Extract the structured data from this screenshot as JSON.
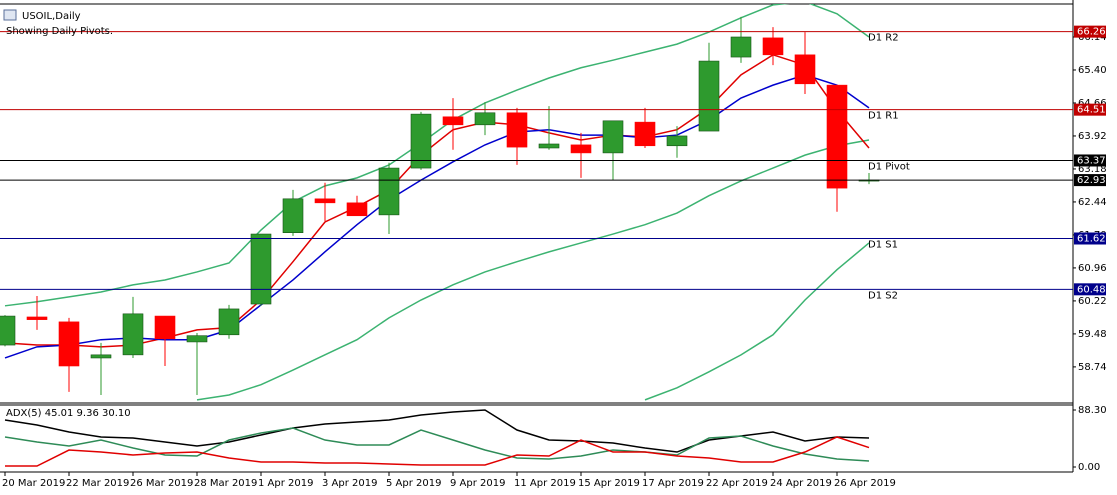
{
  "chart_data": [
    {
      "type": "candlestick",
      "title": "USOIL,Daily",
      "subtitle": "Showing Daily Pivots.",
      "categories": [
        "20 Mar 2019",
        null,
        "22 Mar 2019",
        null,
        "26 Mar 2019",
        null,
        "28 Mar 2019",
        null,
        "1 Apr 2019",
        null,
        "3 Apr 2019",
        null,
        "5 Apr 2019",
        null,
        "9 Apr 2019",
        null,
        "11 Apr 2019",
        null,
        "15 Apr 2019",
        null,
        "17 Apr 2019",
        null,
        "22 Apr 2019",
        null,
        "24 Apr 2019",
        null,
        "26 Apr 2019",
        null
      ],
      "open": [
        59.23,
        59.86,
        59.75,
        58.94,
        59.01,
        59.88,
        59.3,
        59.46,
        60.15,
        61.75,
        62.51,
        62.42,
        62.15,
        63.2,
        64.35,
        64.17,
        64.44,
        63.65,
        63.72,
        63.54,
        64.23,
        63.7,
        64.03,
        65.69,
        66.12,
        65.74,
        65.06,
        62.91
      ],
      "high": [
        59.9,
        60.33,
        59.84,
        59.28,
        60.31,
        59.88,
        59.5,
        60.13,
        61.72,
        62.71,
        62.87,
        62.58,
        63.32,
        64.46,
        64.77,
        64.68,
        64.55,
        64.59,
        63.99,
        64.26,
        64.55,
        64.14,
        66.01,
        66.59,
        66.36,
        66.25,
        65.06,
        63.09
      ],
      "low": [
        59.2,
        59.57,
        58.18,
        58.11,
        58.94,
        58.76,
        58.11,
        59.37,
        60.11,
        61.68,
        62.01,
        62.13,
        61.72,
        63.16,
        63.61,
        63.94,
        63.27,
        63.61,
        62.98,
        62.93,
        63.65,
        63.43,
        64.03,
        65.56,
        65.51,
        64.86,
        62.22,
        62.84
      ],
      "close": [
        59.88,
        59.8,
        58.76,
        59.01,
        59.93,
        59.37,
        59.44,
        60.04,
        61.72,
        62.51,
        62.42,
        62.13,
        63.2,
        64.41,
        64.17,
        64.44,
        63.67,
        63.74,
        63.54,
        64.26,
        63.7,
        63.92,
        65.6,
        66.14,
        65.74,
        65.09,
        62.75,
        62.93
      ],
      "up_color": "#2e9a2e",
      "down_color": "#ff0000",
      "series": [
        {
          "color": "#3cb371",
          "values": [
            60.11,
            60.2,
            60.31,
            60.42,
            60.58,
            60.69,
            60.87,
            61.07,
            61.81,
            62.44,
            62.8,
            62.98,
            63.27,
            63.76,
            64.28,
            64.66,
            64.95,
            65.22,
            65.45,
            65.62,
            65.8,
            65.98,
            66.25,
            66.57,
            66.86,
            66.93,
            66.66,
            66.14
          ]
        },
        {
          "color": "#3cb371",
          "values": [
            null,
            null,
            null,
            null,
            null,
            null,
            58.0,
            58.11,
            58.34,
            58.67,
            59.01,
            59.35,
            59.84,
            60.24,
            60.58,
            60.87,
            61.1,
            61.32,
            61.52,
            61.72,
            61.93,
            62.19,
            62.58,
            62.91,
            63.2,
            63.49,
            63.7,
            63.83
          ]
        },
        {
          "color": "#3cb371",
          "values": [
            null,
            null,
            null,
            null,
            null,
            null,
            null,
            null,
            null,
            null,
            null,
            null,
            null,
            null,
            null,
            null,
            null,
            null,
            null,
            null,
            58.0,
            58.27,
            58.63,
            59.01,
            59.46,
            60.24,
            60.92,
            61.52
          ]
        },
        {
          "color": "#e00000",
          "values": [
            59.28,
            59.23,
            59.23,
            59.19,
            59.23,
            59.39,
            59.57,
            59.62,
            60.24,
            61.1,
            61.99,
            62.33,
            62.71,
            63.49,
            64.06,
            64.23,
            64.17,
            63.99,
            63.83,
            63.94,
            63.9,
            64.06,
            64.55,
            65.29,
            65.74,
            65.51,
            64.5,
            63.65
          ]
        },
        {
          "color": "#0000cd",
          "values": [
            58.94,
            59.19,
            59.23,
            59.35,
            59.39,
            59.35,
            59.35,
            59.57,
            60.13,
            60.69,
            61.32,
            61.93,
            62.49,
            62.93,
            63.34,
            63.72,
            64.01,
            64.06,
            63.94,
            63.94,
            63.88,
            63.94,
            64.28,
            64.77,
            65.06,
            65.29,
            65.06,
            64.55
          ]
        }
      ],
      "levels": [
        {
          "name": "D1 R2",
          "value": 66.26,
          "color": "#c00000"
        },
        {
          "name": "D1 R1",
          "value": 64.51,
          "color": "#c00000"
        },
        {
          "name": "D1 Pivot",
          "value": 63.37,
          "color": "#000000"
        },
        {
          "name": "D1 S1",
          "value": 61.62,
          "color": "#00008b"
        },
        {
          "name": "D1 S2",
          "value": 60.48,
          "color": "#00008b"
        }
      ],
      "last_price": 62.93,
      "last_price_color": "#000000",
      "ylim": [
        57.93,
        66.88
      ],
      "yticks": [
        66.14,
        {
          "value": 65.4,
          "label": "65.40"
        },
        64.66,
        63.92,
        63.18,
        62.44,
        {
          "value": 61.7,
          "label": "61.70"
        },
        60.96,
        60.22,
        59.48,
        58.74
      ]
    },
    {
      "type": "line",
      "title": "ADX(5) 45.01 9.36 30.10",
      "series": [
        {
          "color": "#000000",
          "values": [
            72.8,
            65.1,
            54.2,
            46.5,
            44.9,
            38.7,
            32.5,
            38.7,
            49.6,
            60.4,
            66.6,
            69.7,
            72.8,
            80.6,
            85.2,
            88.3,
            57.3,
            41.8,
            40.3,
            37.2,
            29.4,
            23.2,
            41.8,
            48.0,
            54.2,
            40.3,
            46.5,
            45.01
          ]
        },
        {
          "color": "#2e8b57",
          "values": [
            46.5,
            38.7,
            32.5,
            41.8,
            29.4,
            18.6,
            17.0,
            41.8,
            52.7,
            60.4,
            41.8,
            34.1,
            34.1,
            57.3,
            41.8,
            26.3,
            13.9,
            12.4,
            17.0,
            26.3,
            23.2,
            18.6,
            44.9,
            48.0,
            32.5,
            20.1,
            12.4,
            9.36
          ]
        },
        {
          "color": "#e00000",
          "values": [
            1.5,
            1.5,
            26.3,
            23.2,
            18.6,
            21.7,
            23.2,
            13.9,
            7.7,
            7.7,
            6.2,
            6.2,
            4.6,
            3.1,
            3.1,
            3.1,
            18.6,
            17.0,
            41.8,
            23.2,
            23.2,
            17.0,
            13.9,
            7.7,
            7.7,
            23.2,
            46.5,
            30.1
          ]
        }
      ],
      "ylim": [
        -6.2,
        94.5
      ],
      "yticks": [
        {
          "value": 88.3,
          "label": "88.30"
        },
        {
          "value": 0,
          "label": "0.00"
        }
      ]
    }
  ]
}
